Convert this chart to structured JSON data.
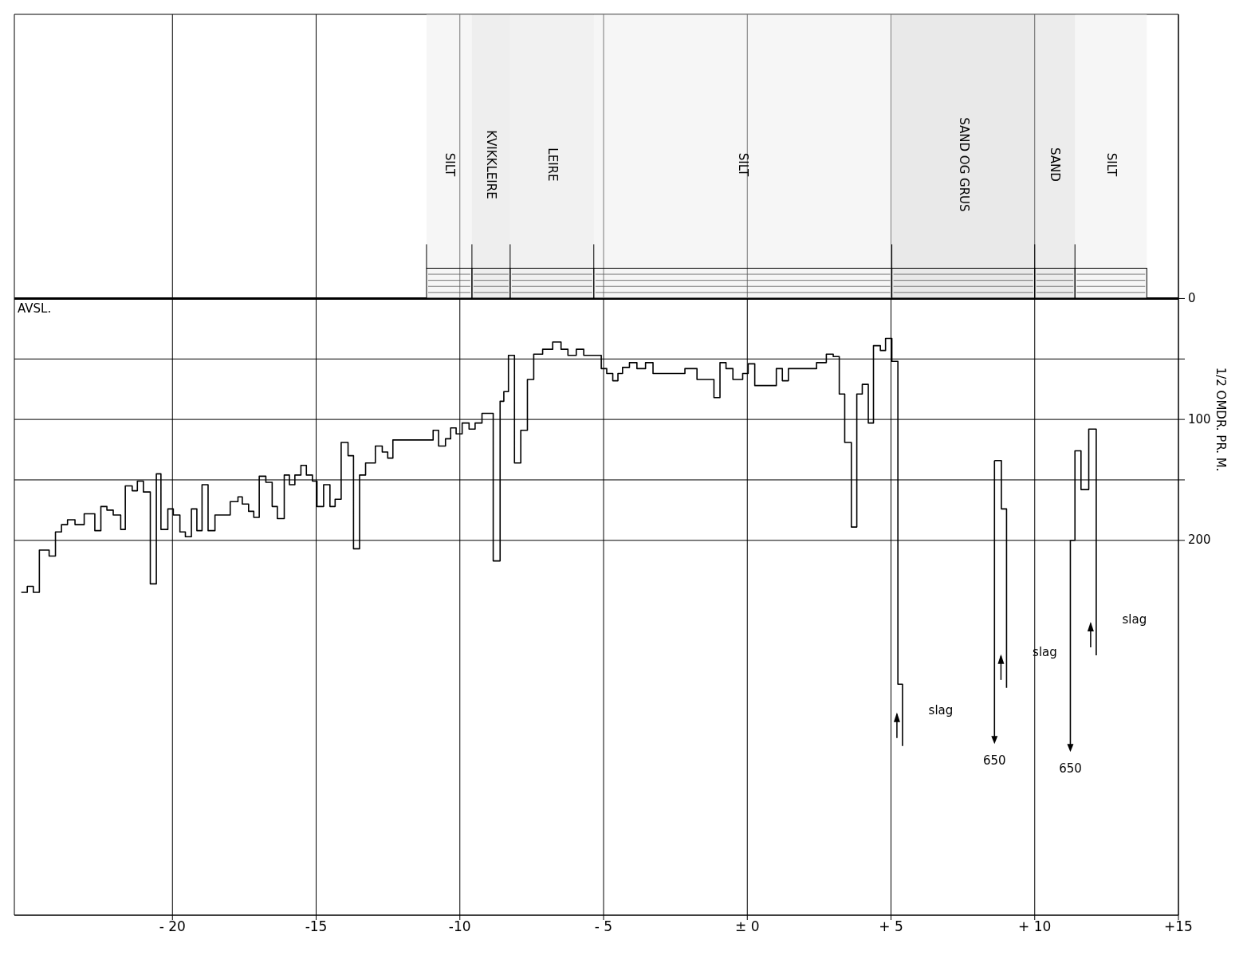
{
  "chart_data": {
    "type": "step",
    "ylabel": "1/2 OMDR. PR. M.",
    "xlim": [
      -25.5,
      15
    ],
    "xticks": [
      {
        "value": -20,
        "label": "- 20"
      },
      {
        "value": -15,
        "label": "-15"
      },
      {
        "value": -10,
        "label": "-10"
      },
      {
        "value": -5,
        "label": "- 5"
      },
      {
        "value": 0,
        "label": "± 0"
      },
      {
        "value": 5,
        "label": "+ 5"
      },
      {
        "value": 10,
        "label": "+ 10"
      },
      {
        "value": 15,
        "label": "+15"
      }
    ],
    "ylim": [
      510,
      -235
    ],
    "yticks": [
      0,
      {
        "value": 50,
        "label": null
      },
      100,
      {
        "value": 150,
        "label": null
      },
      200
    ],
    "grid": true,
    "marker": "none",
    "line_style": "solid",
    "series": [
      {
        "color": "#000000",
        "x": [
          -25.26,
          -25.05,
          -24.84,
          -24.63,
          -24.29,
          -24.07,
          -23.86,
          -23.65,
          -23.39,
          -23.07,
          -22.7,
          -22.49,
          -22.28,
          -22.06,
          -21.8,
          -21.64,
          -21.4,
          -21.22,
          -21.01,
          -20.77,
          -20.56,
          -20.4,
          -20.16,
          -19.97,
          -19.74,
          -19.55,
          -19.34,
          -19.15,
          -18.97,
          -18.76,
          -18.52,
          -17.99,
          -17.72,
          -17.57,
          -17.35,
          -17.17,
          -16.98,
          -16.75,
          -16.53,
          -16.35,
          -16.11,
          -15.93,
          -15.74,
          -15.53,
          -15.34,
          -15.13,
          -14.97,
          -14.74,
          -14.52,
          -14.34,
          -14.13,
          -13.89,
          -13.7,
          -13.49,
          -13.28,
          -12.94,
          -12.7,
          -12.51,
          -12.33,
          -10.93,
          -10.74,
          -10.5,
          -10.32,
          -10.13,
          -9.92,
          -9.68,
          -9.47,
          -9.23,
          -8.84,
          -8.6,
          -8.47,
          -8.31,
          -8.1,
          -7.88,
          -7.65,
          -7.43,
          -7.12,
          -6.77,
          -6.48,
          -6.24,
          -5.95,
          -5.69,
          -5.08,
          -4.89,
          -4.68,
          -4.5,
          -4.34,
          -4.1,
          -3.84,
          -3.54,
          -3.28,
          -2.17,
          -1.75,
          -1.16,
          -0.95,
          -0.74,
          -0.5,
          -0.16,
          0.03,
          0.26,
          1.01,
          1.22,
          1.43,
          2.41,
          2.75,
          2.99,
          3.2,
          3.39,
          3.62,
          3.81,
          4.0,
          4.21,
          4.39,
          4.63,
          4.81,
          5.03,
          5.24,
          5.4
        ],
        "values": [
          243,
          238,
          243,
          208,
          213,
          193,
          187,
          183,
          187,
          178,
          192,
          172,
          175,
          179,
          191,
          155,
          159,
          151,
          160,
          236,
          145,
          191,
          174,
          179,
          193,
          197,
          174,
          192,
          154,
          192,
          179,
          168,
          164,
          170,
          176,
          181,
          147,
          152,
          172,
          182,
          146,
          154,
          146,
          138,
          146,
          151,
          172,
          154,
          172,
          166,
          119,
          130,
          207,
          146,
          136,
          122,
          127,
          132,
          117,
          109,
          122,
          116,
          107,
          112,
          103,
          108,
          103,
          95,
          217,
          85,
          77,
          47,
          136,
          109,
          67,
          46,
          42,
          36,
          42,
          47,
          42,
          47,
          58,
          62,
          68,
          62,
          57,
          53,
          58,
          53,
          62,
          58,
          67,
          82,
          53,
          58,
          67,
          62,
          54,
          72,
          58,
          68,
          58,
          53,
          46,
          48,
          79,
          119,
          189,
          79,
          71,
          103,
          39,
          43,
          33,
          52,
          319,
          370
        ]
      },
      {
        "type": "line",
        "color": "#000000",
        "x": [
          8.6,
          8.84,
          8.84,
          9.02,
          9.02
        ],
        "values": [
          134,
          134,
          174,
          174,
          322
        ]
      },
      {
        "type": "line",
        "color": "#000000",
        "x": [
          11.24,
          11.4,
          11.4,
          11.61,
          11.61,
          11.88,
          11.88,
          12.14,
          12.14
        ],
        "values": [
          200,
          200,
          126,
          126,
          158,
          158,
          108,
          108,
          295
        ]
      }
    ],
    "bands": [
      {
        "axis": "x",
        "from": -11.16,
        "to": -9.58,
        "label": "SILT",
        "color": "#eeeeee"
      },
      {
        "axis": "x",
        "from": -9.58,
        "to": -8.25,
        "label": "KVIKKLEIRE",
        "color": "#dddddd"
      },
      {
        "axis": "x",
        "from": -8.25,
        "to": -5.34,
        "label": "LEIRE",
        "color": "#e4e4e4"
      },
      {
        "axis": "x",
        "from": -5.34,
        "to": 5.03,
        "label": "SILT",
        "color": "#eeeeee"
      },
      {
        "axis": "x",
        "from": 5.03,
        "to": 10.0,
        "label": "SAND OG GRUS",
        "color": "#d4d4d4"
      },
      {
        "axis": "x",
        "from": 10.0,
        "to": 11.4,
        "label": "SAND",
        "color": "#dadada"
      },
      {
        "axis": "x",
        "from": 11.4,
        "to": 13.9,
        "label": "SILT",
        "color": "#eeeeee"
      }
    ],
    "annotations": [
      "AVSL.",
      "slag",
      "slag",
      "slag",
      {
        "text": "650",
        "x": 8.6,
        "y": 134
      },
      {
        "text": "650",
        "x": 11.24,
        "y": 200
      }
    ]
  }
}
